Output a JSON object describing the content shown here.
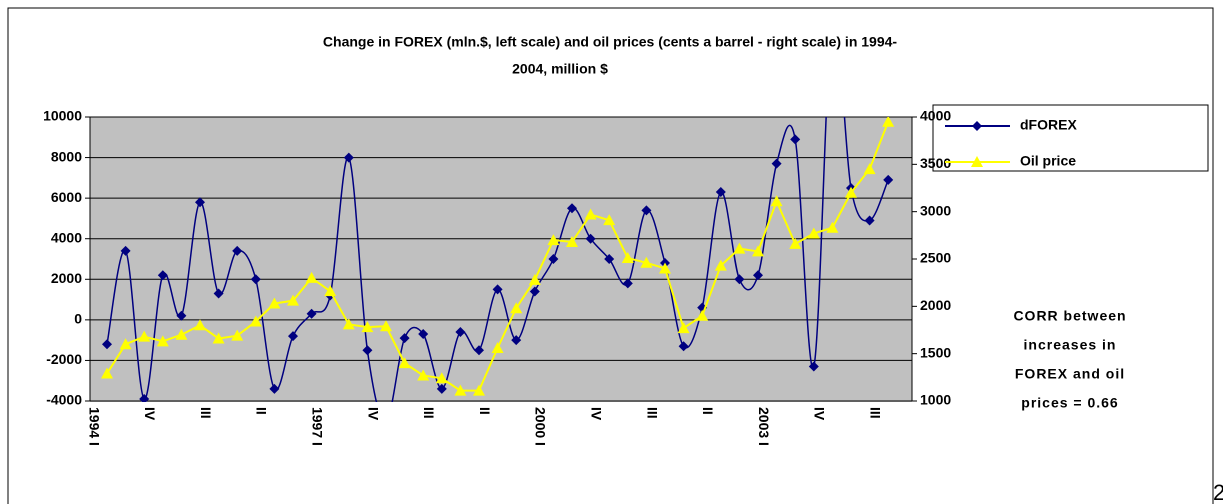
{
  "chart_data": {
    "type": "line",
    "title_lines": [
      "Change in FOREX (mln.$, left scale) and oil prices (cents a barrel - right scale) in 1994-",
      "2004, million $"
    ],
    "categories": [
      "1994 I",
      null,
      null,
      "IV",
      null,
      null,
      "III",
      null,
      null,
      "II",
      null,
      null,
      "1997 I",
      null,
      null,
      "IV",
      null,
      null,
      "III",
      null,
      null,
      "II",
      null,
      null,
      "2000 I",
      null,
      null,
      "IV",
      null,
      null,
      "III",
      null,
      null,
      "II",
      null,
      null,
      "2003 I",
      null,
      null,
      "IV",
      null,
      null,
      "III"
    ],
    "series": [
      {
        "name": "dFOREX",
        "color": "#000080",
        "marker": "diamond",
        "smooth": true,
        "values": [
          -1200,
          3400,
          -3900,
          2200,
          200,
          5800,
          1300,
          3400,
          2000,
          -3400,
          -800,
          300,
          1200,
          8000,
          -1500,
          -5000,
          -900,
          -700,
          -3400,
          -600,
          -1500,
          1500,
          -1000,
          1400,
          3000,
          5500,
          4000,
          3000,
          1800,
          5400,
          2800,
          -1300,
          600,
          6300,
          2000,
          2200,
          7700,
          8900,
          -2300,
          15000,
          6500,
          4900,
          6900
        ]
      },
      {
        "name": "Oil price",
        "color": "#ffff00",
        "marker": "triangle",
        "axis": "y2",
        "smooth": false,
        "values": [
          1290,
          1600,
          1680,
          1630,
          1700,
          1800,
          1660,
          1690,
          1840,
          2030,
          2060,
          2300,
          2160,
          1810,
          1780,
          1790,
          1400,
          1270,
          1240,
          1110,
          1110,
          1560,
          1980,
          2280,
          2700,
          2680,
          2970,
          2910,
          2510,
          2460,
          2400,
          1770,
          1900,
          2430,
          2610,
          2580,
          3110,
          2660,
          2770,
          2830,
          3200,
          3450,
          3950
        ]
      }
    ],
    "ylim": [
      -4000,
      10000
    ],
    "yticks": [
      -4000,
      -2000,
      0,
      2000,
      4000,
      6000,
      8000,
      10000
    ],
    "y2lim": [
      1000,
      4000
    ],
    "y2ticks": [
      1000,
      1500,
      2000,
      2500,
      3000,
      3500,
      4000
    ],
    "grid": true,
    "legend": "right",
    "annotation_lines": [
      "CORR between",
      "increases in",
      "FOREX and oil",
      "prices = 0.66"
    ],
    "page_number": "2"
  }
}
